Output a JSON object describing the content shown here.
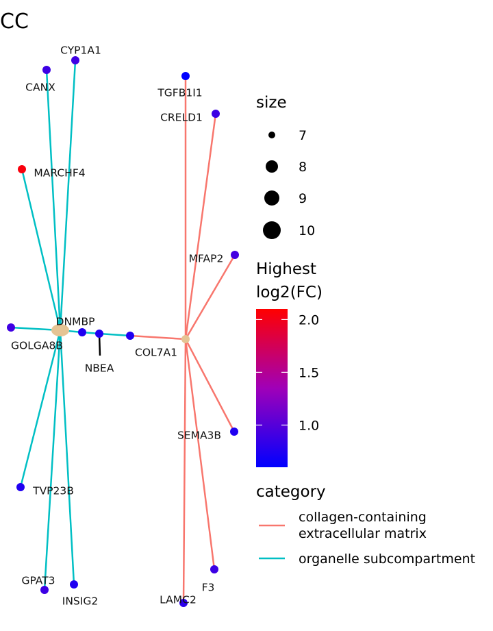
{
  "title": "CC",
  "hubs": [
    {
      "id": "organelle",
      "category": "organelle subcompartment"
    },
    {
      "id": "collagen",
      "category": "collagen-containing extracellular matrix"
    }
  ],
  "genes": [
    {
      "label": "CYP1A1",
      "fc": 0.9
    },
    {
      "label": "CANX",
      "fc": 0.88
    },
    {
      "label": "MARCHF4",
      "fc": 2.05
    },
    {
      "label": "DNMBP",
      "fc": 0.75
    },
    {
      "label": "GOLGA8B",
      "fc": 0.9
    },
    {
      "label": "NBEA",
      "fc": 0.75
    },
    {
      "label": "TVP23B",
      "fc": 0.75
    },
    {
      "label": "GPAT3",
      "fc": 0.88
    },
    {
      "label": "INSIG2",
      "fc": 0.75
    },
    {
      "label": "TGFB1I1",
      "fc": 0.6
    },
    {
      "label": "CRELD1",
      "fc": 0.88
    },
    {
      "label": "MFAP2",
      "fc": 0.92
    },
    {
      "label": "COL7A1",
      "fc": 0.75
    },
    {
      "label": "SEMA3B",
      "fc": 0.75
    },
    {
      "label": "F3",
      "fc": 0.88
    },
    {
      "label": "LAMC2",
      "fc": 0.8
    }
  ],
  "edges": [
    {
      "from": "organelle",
      "to": "CYP1A1",
      "category": "organelle subcompartment"
    },
    {
      "from": "organelle",
      "to": "CANX",
      "category": "organelle subcompartment"
    },
    {
      "from": "organelle",
      "to": "MARCHF4",
      "category": "organelle subcompartment"
    },
    {
      "from": "organelle",
      "to": "GOLGA8B",
      "category": "organelle subcompartment"
    },
    {
      "from": "organelle",
      "to": "TVP23B",
      "category": "organelle subcompartment"
    },
    {
      "from": "organelle",
      "to": "GPAT3",
      "category": "organelle subcompartment"
    },
    {
      "from": "organelle",
      "to": "INSIG2",
      "category": "organelle subcompartment"
    },
    {
      "from": "organelle",
      "to": "DNMBP",
      "category": "organelle subcompartment"
    },
    {
      "from": "DNMBP",
      "to": "NBEA",
      "category": "organelle subcompartment"
    },
    {
      "from": "NBEA",
      "to": "COL7A1",
      "category": "organelle subcompartment"
    },
    {
      "from": "collagen",
      "to": "COL7A1",
      "category": "collagen-containing extracellular matrix"
    },
    {
      "from": "collagen",
      "to": "TGFB1I1",
      "category": "collagen-containing extracellular matrix"
    },
    {
      "from": "collagen",
      "to": "CRELD1",
      "category": "collagen-containing extracellular matrix"
    },
    {
      "from": "collagen",
      "to": "MFAP2",
      "category": "collagen-containing extracellular matrix"
    },
    {
      "from": "collagen",
      "to": "SEMA3B",
      "category": "collagen-containing extracellular matrix"
    },
    {
      "from": "collagen",
      "to": "F3",
      "category": "collagen-containing extracellular matrix"
    },
    {
      "from": "collagen",
      "to": "LAMC2",
      "category": "collagen-containing extracellular matrix"
    }
  ],
  "legend": {
    "size_title": "size",
    "size_values": [
      "7",
      "8",
      "9",
      "10"
    ],
    "color_title_line1": "Highest",
    "color_title_line2": "log2(FC)",
    "color_ticks": [
      "2.0",
      "1.5",
      "1.0"
    ],
    "color_min": 0.6,
    "color_max": 2.1,
    "category_title": "category",
    "categories": [
      {
        "line1": "collagen-containing",
        "line2": "extracellular matrix",
        "color": "#F8766D"
      },
      {
        "line1": "organelle subcompartment",
        "line2": "",
        "color": "#00BFC4"
      }
    ]
  },
  "colors": {
    "low": "#0000FF",
    "high": "#FF0000",
    "hub": "#E5C494",
    "collagen_edge": "#F8766D",
    "organelle_edge": "#00BFC4"
  }
}
